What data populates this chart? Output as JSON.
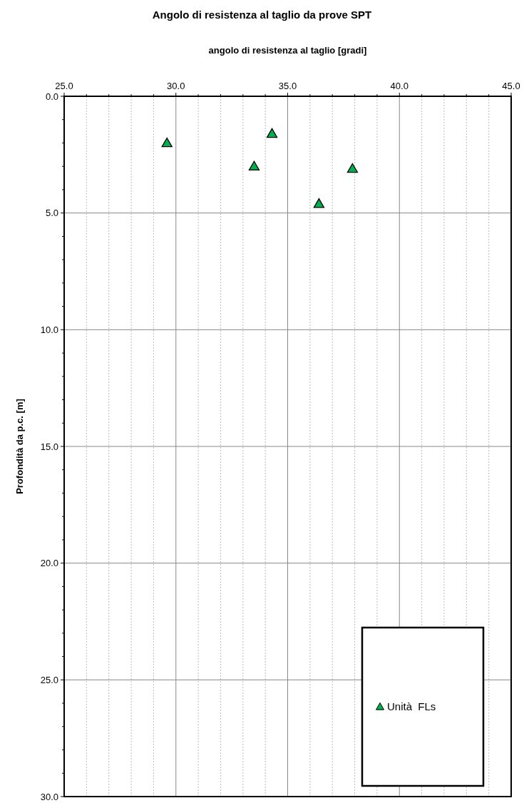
{
  "chart_data": {
    "type": "scatter",
    "title": "Angolo di resistenza al taglio da prove SPT",
    "xlabel": "angolo di resistenza al taglio [gradi]",
    "ylabel": "Profondità da p.c. [m]",
    "x": [
      29.6,
      34.3,
      33.5,
      37.9,
      36.4
    ],
    "series": [
      {
        "name": "Unità  FLs",
        "color": "#00b050",
        "values": [
          2.0,
          1.6,
          3.0,
          3.1,
          4.6
        ]
      }
    ],
    "xlim": [
      25,
      45
    ],
    "ylim": [
      30,
      0
    ],
    "xticks": [
      {
        "value": 25,
        "label": "25.0"
      },
      {
        "value": 26,
        "label": null
      },
      {
        "value": 27,
        "label": null
      },
      {
        "value": 28,
        "label": null
      },
      {
        "value": 29,
        "label": null
      },
      {
        "value": 30,
        "label": "30.0"
      },
      {
        "value": 31,
        "label": null
      },
      {
        "value": 32,
        "label": null
      },
      {
        "value": 33,
        "label": null
      },
      {
        "value": 34,
        "label": null
      },
      {
        "value": 35,
        "label": "35.0"
      },
      {
        "value": 36,
        "label": null
      },
      {
        "value": 37,
        "label": null
      },
      {
        "value": 38,
        "label": null
      },
      {
        "value": 39,
        "label": null
      },
      {
        "value": 40,
        "label": "40.0"
      },
      {
        "value": 41,
        "label": null
      },
      {
        "value": 42,
        "label": null
      },
      {
        "value": 43,
        "label": null
      },
      {
        "value": 44,
        "label": null
      },
      {
        "value": 45,
        "label": "45.0"
      }
    ],
    "yticks": [
      {
        "value": 0,
        "label": "0.0"
      },
      {
        "value": 1,
        "label": null
      },
      {
        "value": 2,
        "label": null
      },
      {
        "value": 3,
        "label": null
      },
      {
        "value": 4,
        "label": null
      },
      {
        "value": 5,
        "label": "5.0"
      },
      {
        "value": 6,
        "label": null
      },
      {
        "value": 7,
        "label": null
      },
      {
        "value": 8,
        "label": null
      },
      {
        "value": 9,
        "label": null
      },
      {
        "value": 10,
        "label": "10.0"
      },
      {
        "value": 11,
        "label": null
      },
      {
        "value": 12,
        "label": null
      },
      {
        "value": 13,
        "label": null
      },
      {
        "value": 14,
        "label": null
      },
      {
        "value": 15,
        "label": "15.0"
      },
      {
        "value": 16,
        "label": null
      },
      {
        "value": 17,
        "label": null
      },
      {
        "value": 18,
        "label": null
      },
      {
        "value": 19,
        "label": null
      },
      {
        "value": 20,
        "label": "20.0"
      },
      {
        "value": 21,
        "label": null
      },
      {
        "value": 22,
        "label": null
      },
      {
        "value": 23,
        "label": null
      },
      {
        "value": 24,
        "label": null
      },
      {
        "value": 25,
        "label": "25.0"
      },
      {
        "value": 26,
        "label": null
      },
      {
        "value": 27,
        "label": null
      },
      {
        "value": 28,
        "label": null
      },
      {
        "value": 29,
        "label": null
      },
      {
        "value": 30,
        "label": "30.0"
      }
    ],
    "grid": true,
    "legend": "bottom right",
    "marker": "triangle"
  }
}
